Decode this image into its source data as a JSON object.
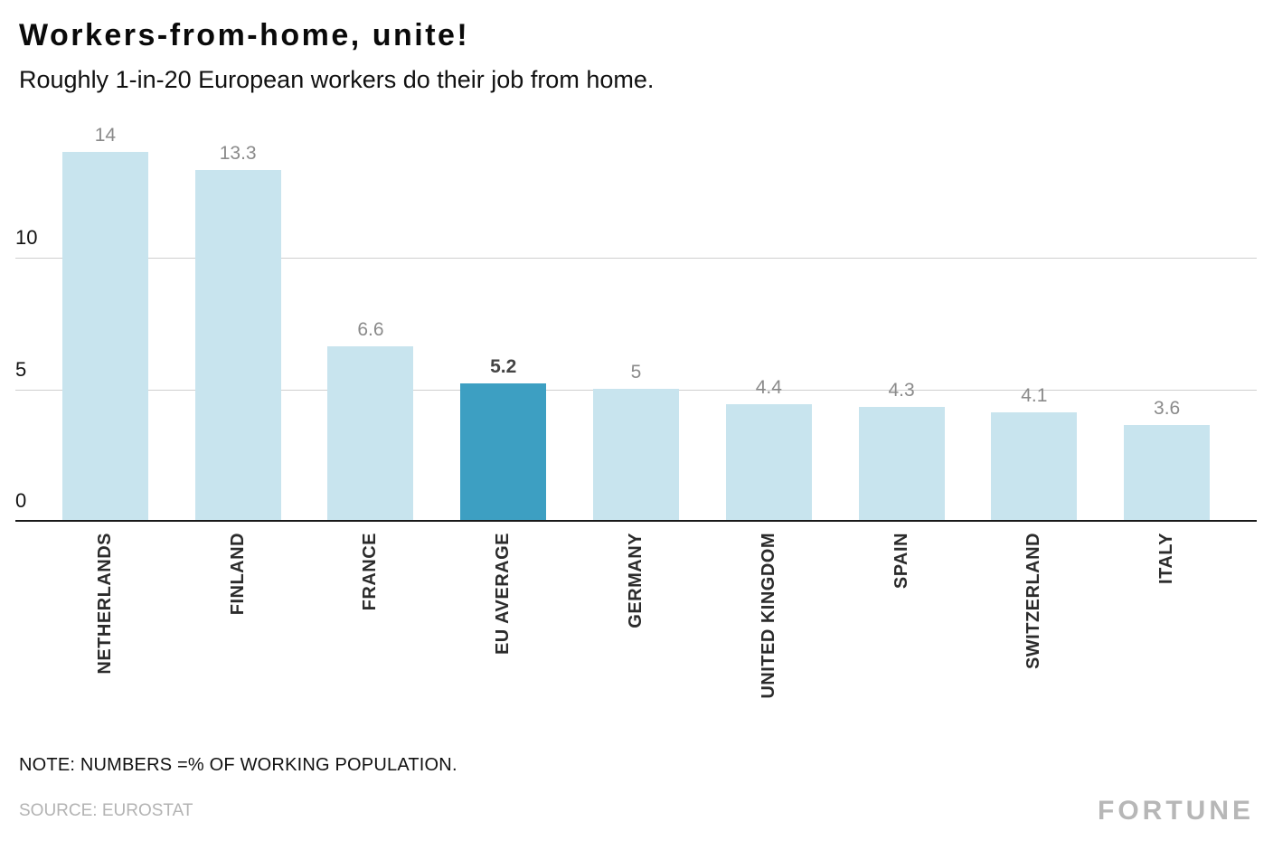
{
  "header": {
    "title": "Workers-from-home, unite!",
    "subtitle": "Roughly 1-in-20 European workers do their job from home."
  },
  "chart_data": {
    "type": "bar",
    "categories": [
      "NETHERLANDS",
      "FINLAND",
      "FRANCE",
      "EU AVERAGE",
      "GERMANY",
      "UNITED KINGDOM",
      "SPAIN",
      "SWITZERLAND",
      "ITALY"
    ],
    "values": [
      14,
      13.3,
      6.6,
      5.2,
      5,
      4.4,
      4.3,
      4.1,
      3.6
    ],
    "value_labels": [
      "14",
      "13.3",
      "6.6",
      "5.2",
      "5",
      "4.4",
      "4.3",
      "4.1",
      "3.6"
    ],
    "highlight_index": 3,
    "highlight_category": "EU AVERAGE",
    "title": "Workers-from-home, unite!",
    "subtitle": "Roughly 1-in-20 European workers do their job from home.",
    "xlabel": "",
    "ylabel": "",
    "yticks": [
      0,
      5,
      10
    ],
    "ylim": [
      0,
      15.6
    ],
    "grid": true,
    "legend": false,
    "bar_color": "#c8e4ee",
    "highlight_color": "#3d9fc2"
  },
  "axis": {
    "tick_0": "0",
    "tick_5": "5",
    "tick_10": "10"
  },
  "footer": {
    "note": "NOTE: NUMBERS =% OF WORKING POPULATION.",
    "source": "SOURCE: EUROSTAT",
    "brand": "FORTUNE"
  }
}
